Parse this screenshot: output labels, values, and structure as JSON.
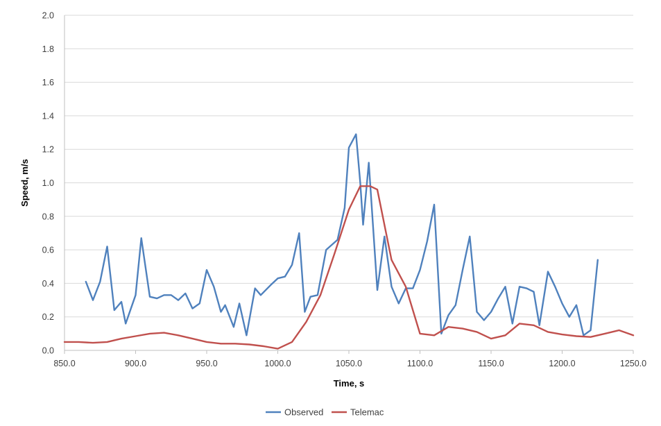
{
  "chart_data": {
    "type": "line",
    "xlabel": "Time, s",
    "ylabel": "Speed, m/s",
    "xlim": [
      850,
      1250
    ],
    "ylim": [
      0,
      2
    ],
    "x_ticks": [
      "850.0",
      "900.0",
      "950.0",
      "1000.0",
      "1050.0",
      "1100.0",
      "1150.0",
      "1200.0",
      "1250.0"
    ],
    "y_ticks": [
      "0.0",
      "0.2",
      "0.4",
      "0.6",
      "0.8",
      "1.0",
      "1.2",
      "1.4",
      "1.6",
      "1.8",
      "2.0"
    ],
    "grid": "horizontal",
    "legend_position": "bottom",
    "series": [
      {
        "name": "Observed",
        "color": "#4f81bd",
        "points": [
          [
            865,
            0.41
          ],
          [
            870,
            0.3
          ],
          [
            875,
            0.41
          ],
          [
            880,
            0.62
          ],
          [
            885,
            0.24
          ],
          [
            890,
            0.29
          ],
          [
            893,
            0.16
          ],
          [
            900,
            0.33
          ],
          [
            904,
            0.67
          ],
          [
            910,
            0.32
          ],
          [
            915,
            0.31
          ],
          [
            920,
            0.33
          ],
          [
            925,
            0.33
          ],
          [
            930,
            0.3
          ],
          [
            935,
            0.34
          ],
          [
            940,
            0.25
          ],
          [
            945,
            0.28
          ],
          [
            950,
            0.48
          ],
          [
            955,
            0.38
          ],
          [
            960,
            0.23
          ],
          [
            963,
            0.27
          ],
          [
            969,
            0.14
          ],
          [
            973,
            0.28
          ],
          [
            978,
            0.09
          ],
          [
            984,
            0.37
          ],
          [
            988,
            0.33
          ],
          [
            995,
            0.39
          ],
          [
            1000,
            0.43
          ],
          [
            1005,
            0.44
          ],
          [
            1010,
            0.51
          ],
          [
            1015,
            0.7
          ],
          [
            1019,
            0.23
          ],
          [
            1023,
            0.32
          ],
          [
            1028,
            0.33
          ],
          [
            1034,
            0.6
          ],
          [
            1038,
            0.63
          ],
          [
            1042,
            0.66
          ],
          [
            1047,
            0.85
          ],
          [
            1050,
            1.21
          ],
          [
            1055,
            1.29
          ],
          [
            1058,
            1.0
          ],
          [
            1060,
            0.75
          ],
          [
            1064,
            1.12
          ],
          [
            1070,
            0.36
          ],
          [
            1075,
            0.68
          ],
          [
            1080,
            0.38
          ],
          [
            1085,
            0.28
          ],
          [
            1090,
            0.37
          ],
          [
            1095,
            0.37
          ],
          [
            1100,
            0.48
          ],
          [
            1105,
            0.65
          ],
          [
            1110,
            0.87
          ],
          [
            1115,
            0.1
          ],
          [
            1120,
            0.21
          ],
          [
            1125,
            0.27
          ],
          [
            1130,
            0.48
          ],
          [
            1135,
            0.68
          ],
          [
            1140,
            0.23
          ],
          [
            1145,
            0.18
          ],
          [
            1150,
            0.23
          ],
          [
            1155,
            0.31
          ],
          [
            1160,
            0.38
          ],
          [
            1165,
            0.16
          ],
          [
            1170,
            0.38
          ],
          [
            1175,
            0.37
          ],
          [
            1180,
            0.35
          ],
          [
            1184,
            0.15
          ],
          [
            1190,
            0.47
          ],
          [
            1195,
            0.38
          ],
          [
            1200,
            0.28
          ],
          [
            1205,
            0.2
          ],
          [
            1210,
            0.27
          ],
          [
            1215,
            0.09
          ],
          [
            1220,
            0.12
          ],
          [
            1225,
            0.54
          ]
        ]
      },
      {
        "name": "Telemac",
        "color": "#c0504d",
        "points": [
          [
            850,
            0.05
          ],
          [
            860,
            0.05
          ],
          [
            870,
            0.045
          ],
          [
            880,
            0.05
          ],
          [
            890,
            0.07
          ],
          [
            900,
            0.085
          ],
          [
            910,
            0.1
          ],
          [
            920,
            0.105
          ],
          [
            930,
            0.09
          ],
          [
            940,
            0.07
          ],
          [
            950,
            0.05
          ],
          [
            960,
            0.04
          ],
          [
            970,
            0.04
          ],
          [
            980,
            0.035
          ],
          [
            990,
            0.025
          ],
          [
            1000,
            0.01
          ],
          [
            1010,
            0.05
          ],
          [
            1020,
            0.17
          ],
          [
            1030,
            0.33
          ],
          [
            1040,
            0.58
          ],
          [
            1050,
            0.84
          ],
          [
            1058,
            0.98
          ],
          [
            1065,
            0.98
          ],
          [
            1070,
            0.96
          ],
          [
            1080,
            0.54
          ],
          [
            1090,
            0.38
          ],
          [
            1100,
            0.1
          ],
          [
            1110,
            0.09
          ],
          [
            1120,
            0.14
          ],
          [
            1130,
            0.13
          ],
          [
            1140,
            0.11
          ],
          [
            1150,
            0.07
          ],
          [
            1160,
            0.09
          ],
          [
            1170,
            0.16
          ],
          [
            1180,
            0.15
          ],
          [
            1190,
            0.11
          ],
          [
            1200,
            0.095
          ],
          [
            1210,
            0.085
          ],
          [
            1220,
            0.08
          ],
          [
            1230,
            0.1
          ],
          [
            1240,
            0.12
          ],
          [
            1250,
            0.09
          ]
        ]
      }
    ]
  }
}
